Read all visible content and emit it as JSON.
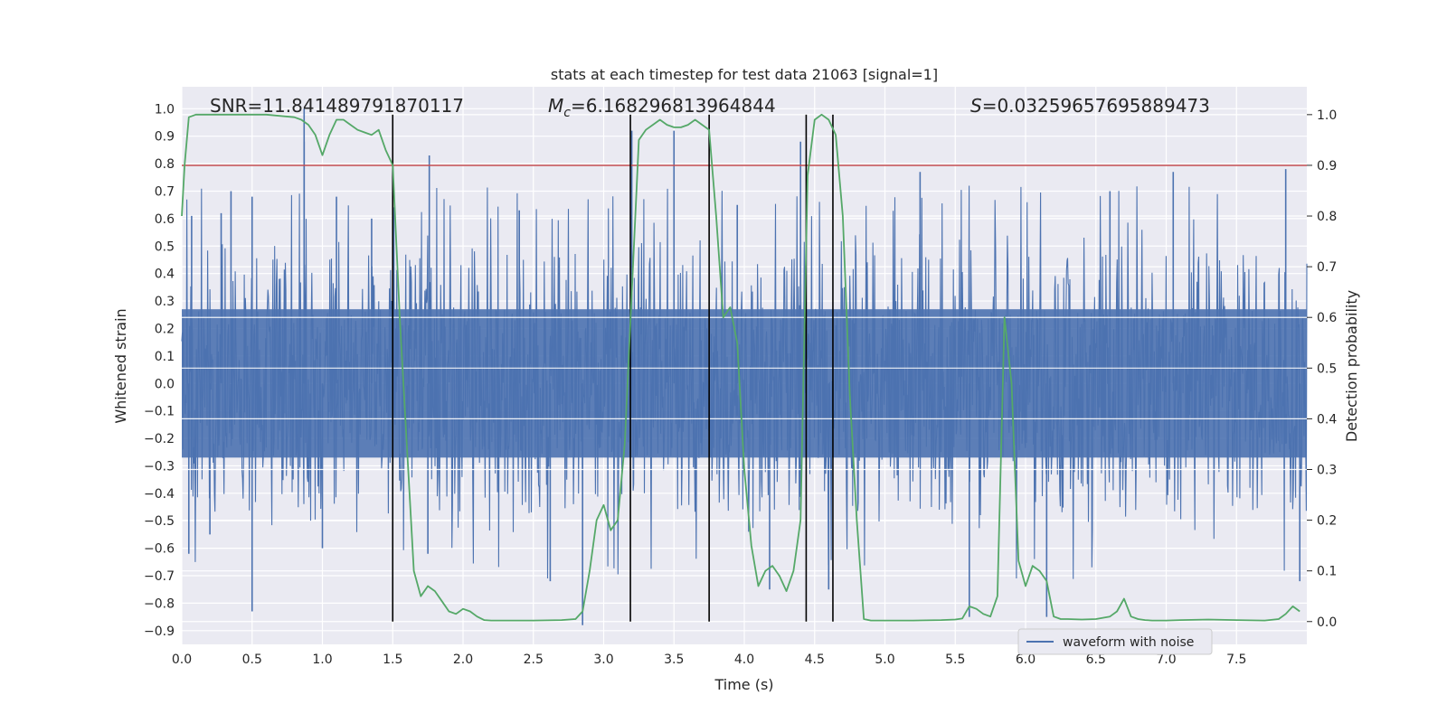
{
  "chart_data": {
    "type": "line",
    "title": "stats at each timestep for test data 21063 [signal=1]",
    "xlabel": "Time (s)",
    "ylabel": "Whitened strain",
    "y2label": "Detection probability",
    "xlim": [
      0.0,
      8.0
    ],
    "ylim": [
      -0.95,
      1.08
    ],
    "y2lim": [
      -0.045,
      1.055
    ],
    "xticks": [
      "0.0",
      "0.5",
      "1.0",
      "1.5",
      "2.0",
      "2.5",
      "3.0",
      "3.5",
      "4.0",
      "4.5",
      "5.0",
      "5.5",
      "6.0",
      "6.5",
      "7.0",
      "7.5"
    ],
    "yticks": [
      "1.0",
      "0.9",
      "0.8",
      "0.7",
      "0.6",
      "0.5",
      "0.4",
      "0.3",
      "0.2",
      "0.1",
      "0.0",
      "-0.1",
      "-0.2",
      "-0.3",
      "-0.4",
      "-0.5",
      "-0.6",
      "-0.7",
      "-0.8",
      "-0.9"
    ],
    "y2ticks": [
      "1.0",
      "0.9",
      "0.8",
      "0.7",
      "0.6",
      "0.5",
      "0.4",
      "0.3",
      "0.2",
      "0.1",
      "0.0"
    ],
    "annotations": {
      "snr": "SNR=11.841489791870117",
      "mc_symbol": "M",
      "mc_sub": "c",
      "mc_value": "=6.168296813964844",
      "s_symbol": "S",
      "s_value": "=0.03259657695889473"
    },
    "legend": {
      "label": "waveform with noise",
      "loc": "lower right"
    },
    "threshold": {
      "value": 0.9,
      "axis": "right",
      "color": "#c44e52"
    },
    "event_lines_x": [
      1.5,
      3.19,
      3.75,
      4.44,
      4.63
    ],
    "series": [
      {
        "name": "waveform with noise",
        "axis": "left",
        "color": "#4c72b0",
        "kind": "noise",
        "n": 2000,
        "core_amplitude": 0.27,
        "spike_samples": [
          [
            0.07,
            0.61
          ],
          [
            0.28,
            0.62
          ],
          [
            0.35,
            0.7
          ],
          [
            0.5,
            0.68
          ],
          [
            0.5,
            -0.83
          ],
          [
            0.87,
            1.0
          ],
          [
            0.87,
            0.88
          ],
          [
            1.1,
            0.68
          ],
          [
            1.35,
            0.6
          ],
          [
            1.76,
            0.83
          ],
          [
            1.75,
            -0.62
          ],
          [
            2.4,
            0.63
          ],
          [
            2.62,
            -0.72
          ],
          [
            2.85,
            -0.88
          ],
          [
            3.2,
            0.92
          ],
          [
            3.5,
            0.92
          ],
          [
            3.95,
            0.65
          ],
          [
            4.18,
            -0.75
          ],
          [
            4.4,
            0.88
          ],
          [
            4.6,
            -0.75
          ],
          [
            5.25,
            0.77
          ],
          [
            5.6,
            -0.85
          ],
          [
            6.15,
            -0.85
          ],
          [
            7.05,
            0.77
          ],
          [
            7.85,
            0.78
          ],
          [
            7.95,
            -0.72
          ],
          [
            0.05,
            -0.62
          ],
          [
            0.2,
            -0.55
          ],
          [
            1.0,
            -0.6
          ],
          [
            6.6,
            0.7
          ]
        ]
      },
      {
        "name": "detection probability",
        "axis": "right",
        "color": "#55a868",
        "x": [
          0.0,
          0.02,
          0.05,
          0.1,
          0.2,
          0.4,
          0.6,
          0.8,
          0.85,
          0.9,
          0.95,
          1.0,
          1.05,
          1.1,
          1.15,
          1.2,
          1.25,
          1.3,
          1.35,
          1.4,
          1.45,
          1.5,
          1.55,
          1.6,
          1.65,
          1.7,
          1.75,
          1.8,
          1.85,
          1.9,
          1.95,
          2.0,
          2.05,
          2.1,
          2.15,
          2.2,
          2.3,
          2.5,
          2.7,
          2.8,
          2.85,
          2.9,
          2.95,
          3.0,
          3.05,
          3.1,
          3.15,
          3.2,
          3.25,
          3.3,
          3.35,
          3.4,
          3.45,
          3.5,
          3.55,
          3.6,
          3.65,
          3.7,
          3.75,
          3.8,
          3.85,
          3.9,
          3.95,
          4.0,
          4.05,
          4.1,
          4.15,
          4.2,
          4.25,
          4.3,
          4.35,
          4.4,
          4.45,
          4.5,
          4.55,
          4.6,
          4.65,
          4.7,
          4.75,
          4.8,
          4.85,
          4.9,
          5.0,
          5.2,
          5.4,
          5.5,
          5.55,
          5.6,
          5.65,
          5.7,
          5.75,
          5.8,
          5.85,
          5.9,
          5.95,
          6.0,
          6.05,
          6.1,
          6.15,
          6.2,
          6.25,
          6.3,
          6.4,
          6.5,
          6.6,
          6.65,
          6.7,
          6.75,
          6.8,
          6.85,
          6.9,
          7.0,
          7.1,
          7.3,
          7.5,
          7.7,
          7.8,
          7.85,
          7.9,
          7.95
        ],
        "y": [
          0.8,
          0.9,
          0.995,
          1.0,
          1.0,
          1.0,
          1.0,
          0.995,
          0.99,
          0.98,
          0.96,
          0.92,
          0.96,
          0.99,
          0.99,
          0.98,
          0.97,
          0.965,
          0.96,
          0.97,
          0.93,
          0.9,
          0.6,
          0.35,
          0.1,
          0.05,
          0.07,
          0.06,
          0.04,
          0.02,
          0.015,
          0.025,
          0.02,
          0.01,
          0.003,
          0.002,
          0.002,
          0.002,
          0.003,
          0.005,
          0.02,
          0.1,
          0.2,
          0.23,
          0.18,
          0.2,
          0.35,
          0.65,
          0.95,
          0.97,
          0.98,
          0.99,
          0.98,
          0.975,
          0.975,
          0.98,
          0.99,
          0.98,
          0.97,
          0.8,
          0.6,
          0.62,
          0.55,
          0.3,
          0.15,
          0.07,
          0.1,
          0.11,
          0.09,
          0.06,
          0.1,
          0.2,
          0.88,
          0.99,
          1.0,
          0.99,
          0.96,
          0.8,
          0.45,
          0.2,
          0.005,
          0.002,
          0.002,
          0.002,
          0.003,
          0.004,
          0.006,
          0.03,
          0.025,
          0.015,
          0.01,
          0.05,
          0.6,
          0.47,
          0.12,
          0.07,
          0.11,
          0.1,
          0.08,
          0.01,
          0.005,
          0.005,
          0.004,
          0.005,
          0.01,
          0.02,
          0.045,
          0.01,
          0.005,
          0.003,
          0.002,
          0.002,
          0.003,
          0.004,
          0.003,
          0.002,
          0.005,
          0.015,
          0.03,
          0.02
        ]
      }
    ]
  }
}
